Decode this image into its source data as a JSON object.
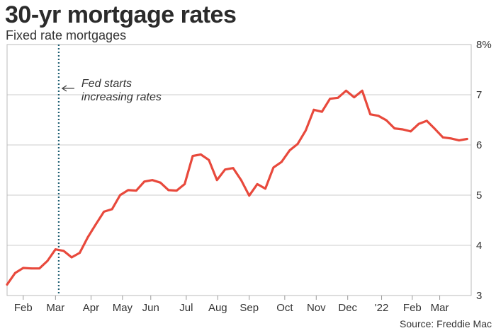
{
  "header": {
    "title": "30-yr mortgage rates",
    "subtitle": "Fixed rate mortgages"
  },
  "footer": {
    "source": "Source: Freddie Mac"
  },
  "colors": {
    "line": "#e8493c",
    "marker": "#1f5f73",
    "grid": "#cccccc"
  },
  "chart_data": {
    "type": "line",
    "title": "30-yr mortgage rates",
    "subtitle": "Fixed rate mortgages",
    "ylim": [
      3,
      8
    ],
    "xlim": [
      0,
      57.5
    ],
    "grid": true,
    "y_axis_side": "right",
    "y_ticks": [
      {
        "value": 3,
        "label": "3"
      },
      {
        "value": 4,
        "label": "4"
      },
      {
        "value": 5,
        "label": "5"
      },
      {
        "value": 6,
        "label": "6"
      },
      {
        "value": 7,
        "label": "7"
      },
      {
        "value": 8,
        "label": "8%"
      }
    ],
    "x_ticks": [
      {
        "x": 2,
        "label": "Feb"
      },
      {
        "x": 6,
        "label": "Mar"
      },
      {
        "x": 10.4,
        "label": "Apr"
      },
      {
        "x": 14.3,
        "label": "May"
      },
      {
        "x": 17.8,
        "label": "Jun"
      },
      {
        "x": 22.2,
        "label": "Jul"
      },
      {
        "x": 26.1,
        "label": "Aug"
      },
      {
        "x": 30,
        "label": "Sep"
      },
      {
        "x": 34.4,
        "label": "Oct"
      },
      {
        "x": 38.3,
        "label": "Nov"
      },
      {
        "x": 42.2,
        "label": "Dec"
      },
      {
        "x": 46.4,
        "label": "'22"
      },
      {
        "x": 50.2,
        "label": "Feb"
      },
      {
        "x": 53.6,
        "label": "Mar"
      }
    ],
    "series": [
      {
        "x": [
          0,
          1,
          2,
          3,
          4,
          5,
          6,
          7,
          8,
          9,
          10,
          11,
          12,
          13,
          14,
          15,
          16,
          17,
          18,
          19,
          20,
          21,
          22,
          23,
          24,
          25,
          26,
          27,
          28,
          29,
          30,
          31,
          32,
          33,
          34,
          35,
          36,
          37,
          38,
          39,
          40,
          41,
          42,
          43,
          44,
          45,
          46,
          47,
          48,
          49,
          50,
          51,
          52,
          53,
          54,
          55,
          56,
          57
        ],
        "values": [
          3.22,
          3.45,
          3.55,
          3.54,
          3.54,
          3.69,
          3.92,
          3.89,
          3.76,
          3.85,
          4.16,
          4.42,
          4.67,
          4.72,
          5.0,
          5.1,
          5.09,
          5.27,
          5.3,
          5.25,
          5.1,
          5.09,
          5.22,
          5.78,
          5.81,
          5.7,
          5.3,
          5.51,
          5.54,
          5.3,
          4.99,
          5.22,
          5.13,
          5.55,
          5.66,
          5.89,
          6.02,
          6.29,
          6.7,
          6.66,
          6.92,
          6.94,
          7.08,
          6.95,
          7.08,
          6.61,
          6.58,
          6.49,
          6.33,
          6.31,
          6.27,
          6.42,
          6.48,
          6.32,
          6.15,
          6.13,
          6.09,
          6.12
        ]
      }
    ],
    "annotations": [
      {
        "x": 6.4,
        "label_lines": [
          "Fed starts",
          "increasing rates"
        ],
        "style": "dotted vertical line"
      }
    ]
  }
}
